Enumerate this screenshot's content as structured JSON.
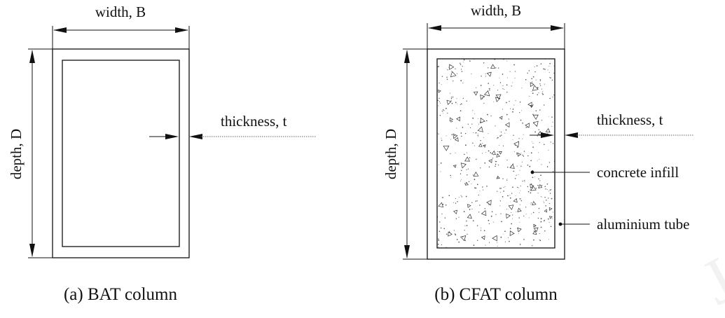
{
  "colors": {
    "line": "#111111",
    "leader": "#666666",
    "watermark": "#f2f2f2"
  },
  "panel_a": {
    "width_label": "width, B",
    "depth_label": "depth, D",
    "thickness_label": "thickness, t",
    "caption": "(a) BAT column"
  },
  "panel_b": {
    "width_label": "width, B",
    "depth_label": "depth, D",
    "thickness_label": "thickness, t",
    "infill_label": "concrete infill",
    "tube_label": "aluminium tube",
    "caption": "(b) CFAT column"
  }
}
